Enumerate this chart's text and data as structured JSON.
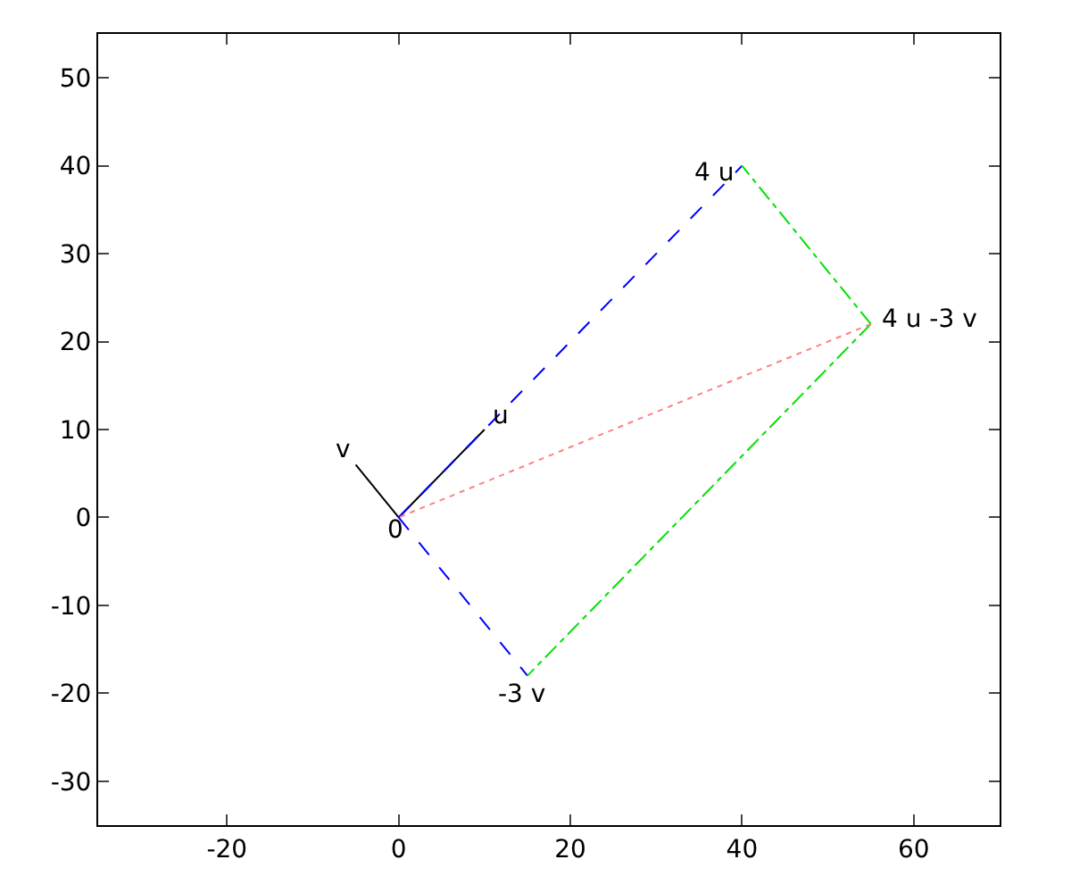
{
  "chart_data": {
    "type": "line",
    "series": [
      {
        "color": "#000000",
        "x": [
          0,
          10
        ],
        "values": [
          0,
          10
        ],
        "line_style": "solid"
      },
      {
        "color": "#000000",
        "x": [
          0,
          -5
        ],
        "values": [
          0,
          6
        ],
        "line_style": "solid"
      },
      {
        "color": "#0000ff",
        "x": [
          0,
          40
        ],
        "values": [
          0,
          40
        ],
        "line_style": "dashed"
      },
      {
        "color": "#0000ff",
        "x": [
          0,
          15
        ],
        "values": [
          0,
          -18
        ],
        "line_style": "dashed"
      },
      {
        "color": "#00e000",
        "x": [
          55,
          40
        ],
        "values": [
          22,
          40
        ],
        "line_style": "dashdot"
      },
      {
        "color": "#00e000",
        "x": [
          55,
          15
        ],
        "values": [
          22,
          -18
        ],
        "line_style": "dashdot"
      },
      {
        "color": "#ff8080",
        "x": [
          55,
          0
        ],
        "values": [
          22,
          0
        ],
        "line_style": "dotted"
      }
    ],
    "annotations": [
      {
        "text": "u",
        "x": 10,
        "y": 10
      },
      {
        "text": "v",
        "x": -5,
        "y": 6
      },
      {
        "text": "0",
        "x": 0,
        "y": 0
      },
      {
        "text": "4 u",
        "x": 40,
        "y": 40
      },
      {
        "text": "-3 v",
        "x": 15,
        "y": -18
      },
      {
        "text": "4 u -3 v",
        "x": 55,
        "y": 22
      }
    ],
    "xlim": [
      -35,
      70
    ],
    "xticks": [
      -20,
      0,
      20,
      40,
      60
    ],
    "ylim": [
      -35,
      55
    ],
    "yticks": [
      -30,
      -20,
      -10,
      0,
      10,
      20,
      30,
      40,
      50
    ],
    "marker": "none"
  }
}
